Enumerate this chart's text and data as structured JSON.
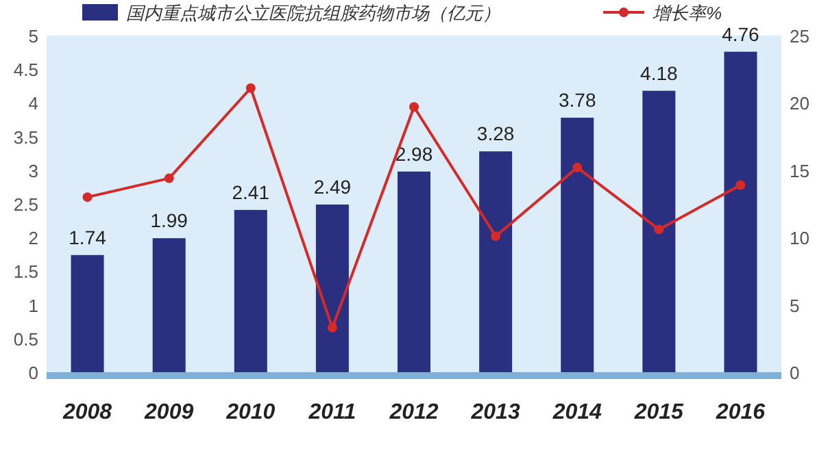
{
  "chart_data": {
    "type": "bar",
    "categories": [
      "2008",
      "2009",
      "2010",
      "2011",
      "2012",
      "2013",
      "2014",
      "2015",
      "2016"
    ],
    "series": [
      {
        "name": "国内重点城市公立医院抗组胺药物市场（亿元）",
        "color": "#2b2f7f",
        "values": [
          1.74,
          1.99,
          2.41,
          2.49,
          2.98,
          3.28,
          3.78,
          4.18,
          4.76
        ],
        "value_labels": [
          "1.74",
          "1.99",
          "2.41",
          "2.49",
          "2.98",
          "3.28",
          "3.78",
          "4.18",
          "4.76"
        ]
      },
      {
        "name": "增长率%",
        "type": "line",
        "axis": "y2",
        "color": "#d42a2a",
        "marker": "circle",
        "values": [
          13,
          14.4,
          21.1,
          3.3,
          19.7,
          10.1,
          15.2,
          10.6,
          13.9
        ]
      }
    ],
    "ylim": [
      0,
      5
    ],
    "yticks": [
      0,
      0.5,
      1,
      1.5,
      2,
      2.5,
      3,
      3.5,
      4,
      4.5,
      5
    ],
    "y2lim": [
      0,
      25
    ],
    "y2ticks": [
      0,
      5,
      10,
      15,
      20,
      25
    ],
    "legend": "top"
  }
}
